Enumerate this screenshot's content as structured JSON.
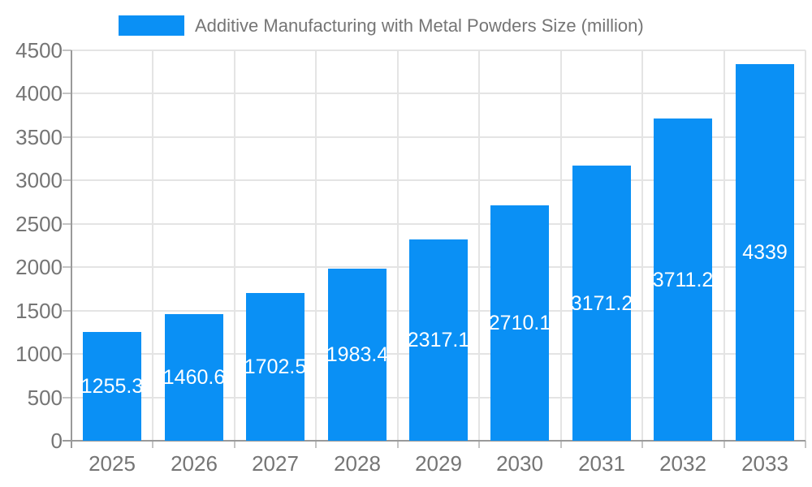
{
  "legend": {
    "label": "Additive Manufacturing with Metal Powders Size (million)"
  },
  "chart_data": {
    "type": "bar",
    "title": "Additive Manufacturing with Metal Powders Size (million)",
    "series_name": "Additive Manufacturing with Metal Powders Size (million)",
    "categories": [
      "2025",
      "2026",
      "2027",
      "2028",
      "2029",
      "2030",
      "2031",
      "2032",
      "2033"
    ],
    "values": [
      1255.3,
      1460.6,
      1702.5,
      1983.4,
      2317.1,
      2710.1,
      3171.2,
      3711.2,
      4339
    ],
    "value_labels": [
      "1255.3",
      "1460.6",
      "1702.5",
      "1983.4",
      "2317.1",
      "2710.1",
      "3171.2",
      "3711.2",
      "4339"
    ],
    "xlabel": "",
    "ylabel": "",
    "ylim": [
      0,
      4500
    ],
    "ytick_step": 500,
    "yticks": [
      0,
      500,
      1000,
      1500,
      2000,
      2500,
      3000,
      3500,
      4000,
      4500
    ],
    "grid": true,
    "legend_position": "top",
    "colors": {
      "bar": "#0a90f5",
      "value_label": "#ffffff",
      "axis_label": "#757575",
      "grid_line": "#e4e4e4",
      "axis_line": "#9a9a9a",
      "tick_line": "#c4c4c4",
      "background": "#ffffff"
    }
  }
}
